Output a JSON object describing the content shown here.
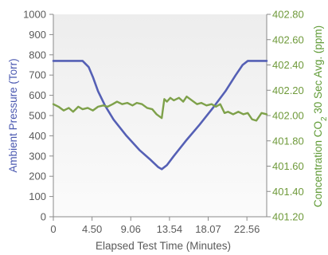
{
  "chart_data": {
    "type": "line",
    "xlabel": "Elapsed Test Time (Minutes)",
    "x_ticks": [
      "0",
      "4.50",
      "9.06",
      "13.54",
      "18.07",
      "22.56"
    ],
    "x_range": [
      0,
      24.8
    ],
    "grid": false,
    "left_axis": {
      "label": "Ambient Pressure (Torr)",
      "range": [
        0,
        1000
      ],
      "ticks": [
        "0",
        "100",
        "200",
        "300",
        "400",
        "500",
        "600",
        "700",
        "800",
        "900",
        "1000"
      ],
      "color": "#4a58b0"
    },
    "right_axis": {
      "label_main": "Concentration CO",
      "label_sub": "2",
      "label_rest": " 30 Sec Avg. (ppm)",
      "range": [
        401.2,
        402.8
      ],
      "ticks": [
        "401.20",
        "401.40",
        "401.60",
        "401.80",
        "402.00",
        "402.20",
        "402.40",
        "402.60",
        "402.80"
      ],
      "color": "#6f9a3b"
    },
    "series": [
      {
        "axis": "left",
        "color": "#5560b5",
        "x": [
          0,
          3.4,
          4.1,
          4.6,
          5.2,
          6.0,
          7.0,
          8.5,
          10.0,
          11.2,
          12.2,
          12.6,
          13.2,
          14.0,
          15.5,
          17.0,
          18.5,
          20.0,
          21.2,
          22.0,
          22.6,
          24.8
        ],
        "values": [
          770,
          770,
          740,
          690,
          620,
          550,
          480,
          400,
          330,
          285,
          245,
          235,
          255,
          300,
          380,
          455,
          535,
          620,
          700,
          750,
          770,
          770
        ]
      },
      {
        "axis": "right",
        "color": "#7ea14a",
        "x": [
          0,
          0.6,
          1.2,
          1.8,
          2.3,
          2.9,
          3.4,
          4.0,
          4.6,
          5.2,
          5.8,
          6.3,
          6.9,
          7.4,
          8.0,
          8.6,
          9.2,
          9.7,
          10.3,
          10.9,
          11.5,
          12.0,
          12.6,
          12.9,
          13.2,
          13.6,
          14.0,
          14.6,
          15.1,
          15.5,
          16.1,
          16.7,
          17.2,
          17.8,
          18.4,
          18.9,
          19.4,
          19.9,
          20.3,
          20.9,
          21.5,
          22.1,
          22.6,
          23.1,
          23.6,
          24.2,
          24.8
        ],
        "values": [
          402.09,
          402.07,
          402.04,
          402.06,
          402.03,
          402.07,
          402.05,
          402.06,
          402.04,
          402.07,
          402.08,
          402.07,
          402.09,
          402.11,
          402.09,
          402.1,
          402.08,
          402.1,
          402.09,
          402.06,
          402.05,
          402.01,
          401.98,
          402.13,
          402.11,
          402.14,
          402.12,
          402.14,
          402.11,
          402.15,
          402.12,
          402.09,
          402.1,
          402.08,
          402.09,
          402.07,
          402.09,
          402.02,
          402.03,
          402.01,
          402.03,
          402.01,
          402.02,
          401.97,
          401.96,
          402.02,
          402.01
        ]
      }
    ]
  }
}
